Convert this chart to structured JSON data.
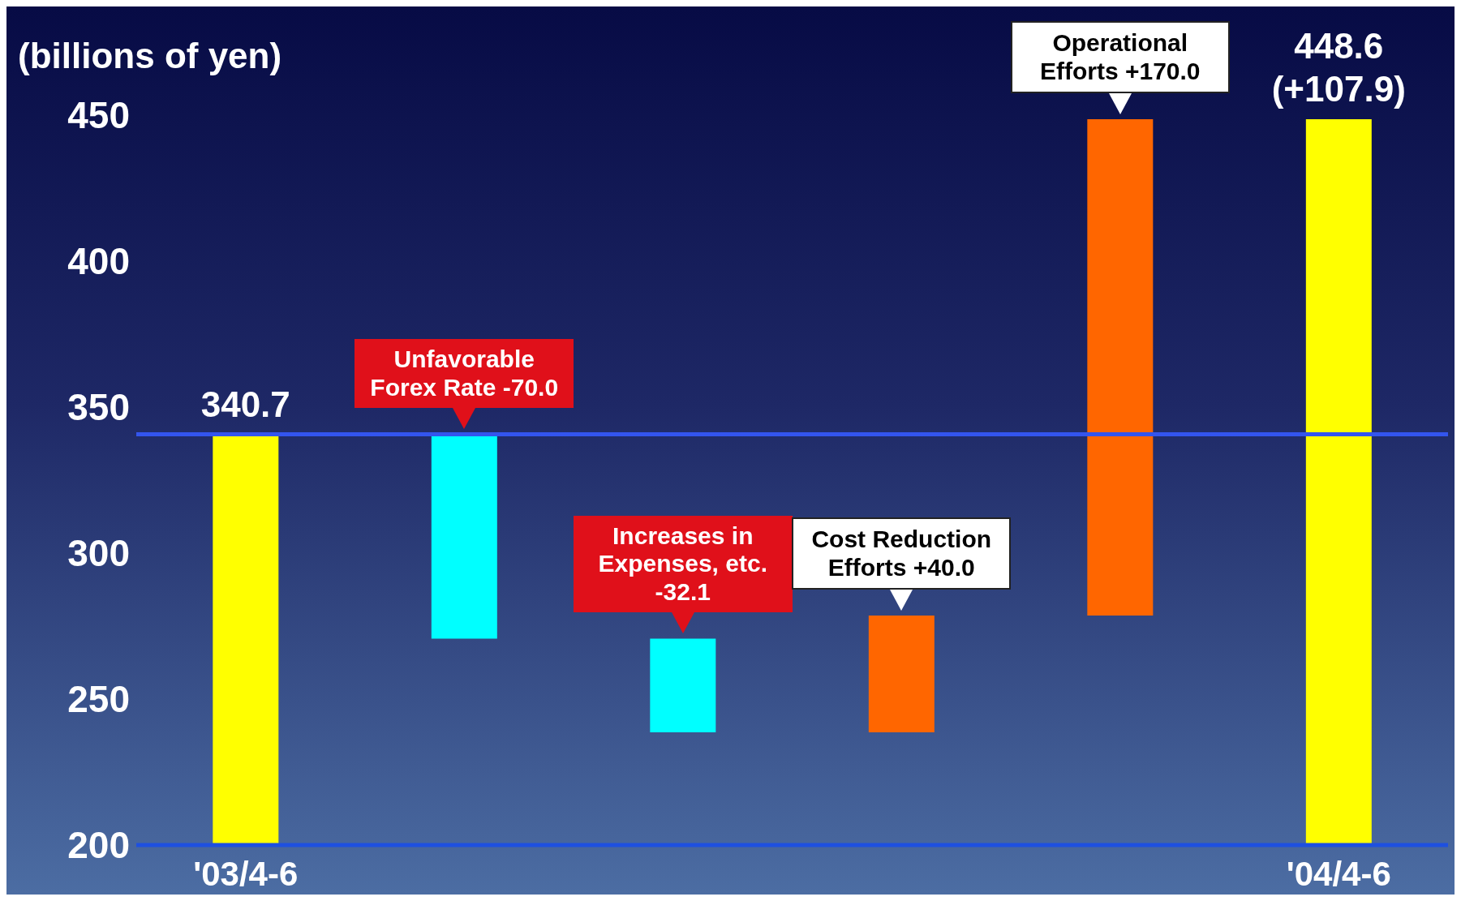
{
  "chart_data": {
    "type": "bar",
    "ylabel": "(billions of yen)",
    "categories": [
      "'03/4-6",
      null,
      null,
      null,
      null,
      "'04/4-6"
    ],
    "values": [
      340.7,
      -70.0,
      -32.1,
      40.0,
      170.0,
      448.6
    ],
    "base": [
      null,
      340.7,
      270.7,
      238.6,
      278.6,
      null
    ],
    "colors": [
      "#ffff00",
      "#00ffff",
      "#00ffff",
      "#ff6600",
      "#ff6600",
      "#ffff00"
    ],
    "value_labels": [
      "340.7",
      null,
      null,
      null,
      null,
      "448.6 (+107.9)"
    ],
    "annotations": [
      "Unfavorable Forex Rate -70.0",
      "Increases in Expenses, etc. -32.1",
      "Cost Reduction Efforts +40.0",
      "Operational Efforts +170.0"
    ],
    "ref_lines": [
      {
        "axis": "y",
        "value": 340.7,
        "color": "#3355ee"
      }
    ],
    "ylim": [
      200,
      450
    ],
    "yticks": [
      200,
      250,
      300,
      350,
      400,
      450
    ],
    "grid": false
  }
}
